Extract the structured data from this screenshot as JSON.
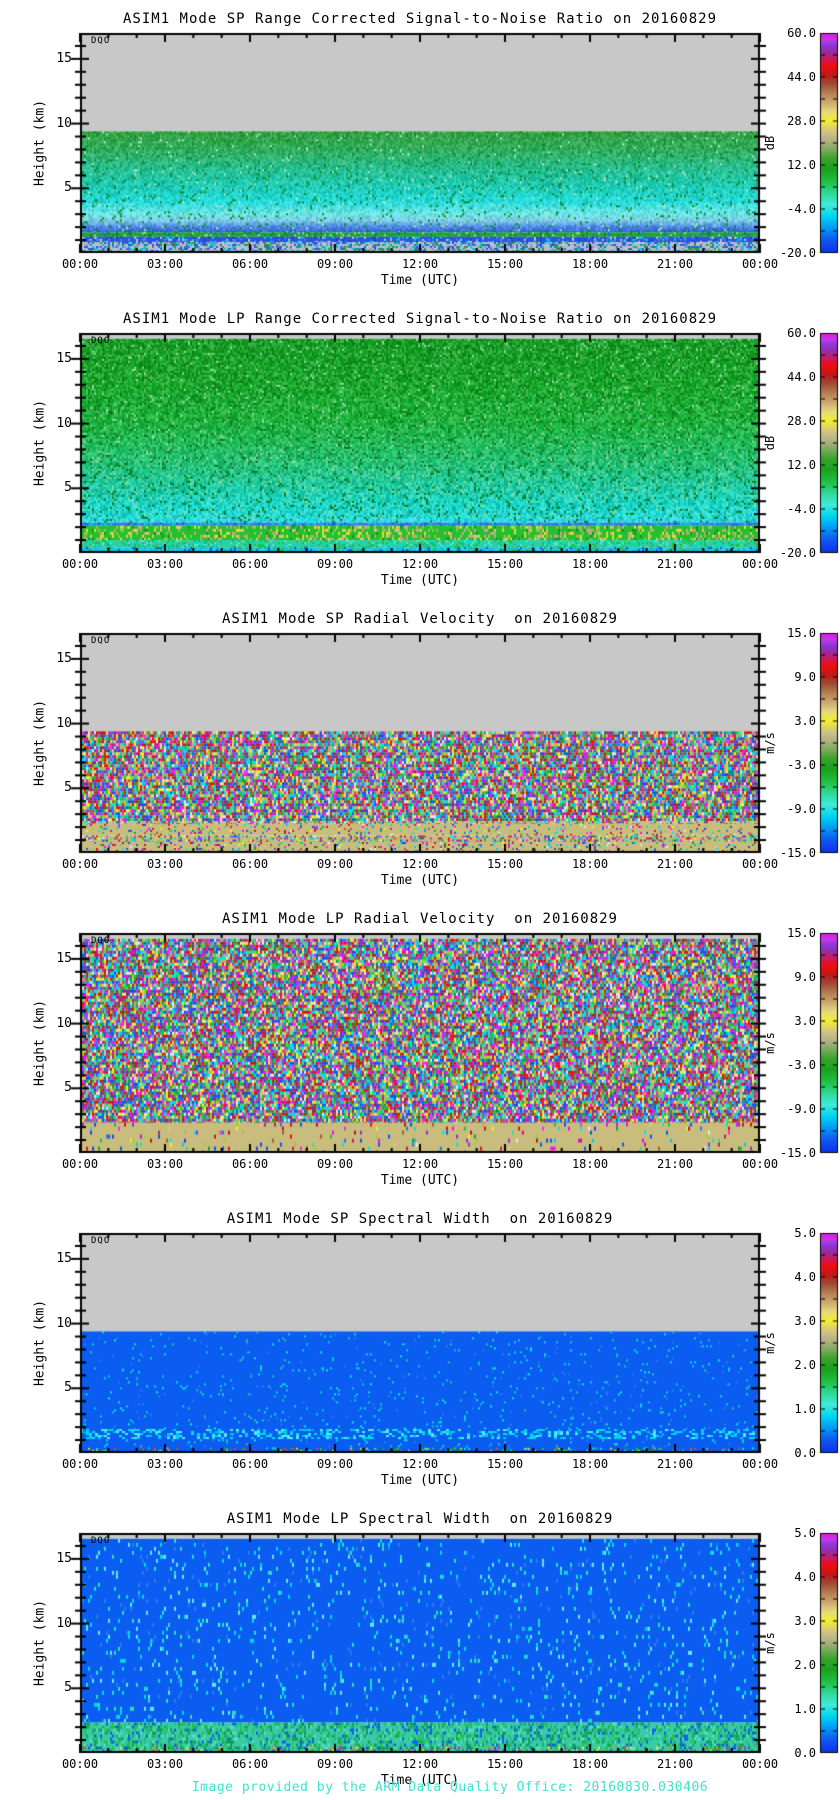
{
  "page": {
    "background": "#ffffff"
  },
  "footer": {
    "text": "Image provided by the ARM Data Quality Office: 20160830.030406",
    "color": "#40e0d0"
  },
  "palettes": {
    "rainbow": [
      "#2244ee",
      "#2a7af2",
      "#00ccee",
      "#35d8a0",
      "#22c044",
      "#1e9e2e",
      "#a0d030",
      "#f0ee30",
      "#d8cc70",
      "#cbaa60",
      "#a86038",
      "#b02020",
      "#e81010",
      "#c02060",
      "#8838cc",
      "#e838dd",
      "#f010f0",
      "#e8e8e8",
      "#0b5cf0",
      "#00e8e8"
    ]
  },
  "colorbar_gradient": [
    [
      0.0,
      "#0a30f0"
    ],
    [
      0.06,
      "#1058f2"
    ],
    [
      0.12,
      "#00a2f5"
    ],
    [
      0.17,
      "#00d8ee"
    ],
    [
      0.22,
      "#40ecd8"
    ],
    [
      0.27,
      "#2eda9a"
    ],
    [
      0.32,
      "#22c345"
    ],
    [
      0.38,
      "#17a21e"
    ],
    [
      0.43,
      "#3ba32c"
    ],
    [
      0.47,
      "#7cab5e"
    ],
    [
      0.51,
      "#b3b184"
    ],
    [
      0.55,
      "#cfc386"
    ],
    [
      0.6,
      "#f2ee2e"
    ],
    [
      0.64,
      "#e7dc7a"
    ],
    [
      0.68,
      "#cfae72"
    ],
    [
      0.73,
      "#b27c50"
    ],
    [
      0.77,
      "#9e4a34"
    ],
    [
      0.81,
      "#c01818"
    ],
    [
      0.85,
      "#ee0e0e"
    ],
    [
      0.88,
      "#d01850"
    ],
    [
      0.91,
      "#a02898"
    ],
    [
      0.94,
      "#8a35d5"
    ],
    [
      0.97,
      "#c13ae8"
    ],
    [
      1.0,
      "#f00ef0"
    ]
  ],
  "chart_data": [
    {
      "type": "heatmap",
      "title": "ASIM1 Mode SP Range Corrected Signal-to-Noise Ratio on 20160829",
      "xlabel": "Time (UTC)",
      "ylabel": "Height (km)",
      "annotation": "DQO",
      "xticks": [
        "00:00",
        "03:00",
        "06:00",
        "09:00",
        "12:00",
        "15:00",
        "18:00",
        "21:00",
        "00:00"
      ],
      "xrange_hours": [
        0,
        24
      ],
      "yticks": [
        5,
        10,
        15
      ],
      "yrange": [
        0,
        17
      ],
      "colorbar": {
        "unit": "dB",
        "ticks": [
          "60.0",
          "44.0",
          "28.0",
          "12.0",
          "-4.0",
          "-20.0"
        ],
        "range": [
          -20,
          60
        ]
      },
      "field": {
        "layers": [
          {
            "kind": "solid",
            "y0": 9.4,
            "y1": 17,
            "color": "#c8c8c8"
          },
          {
            "kind": "grad",
            "y0": 1.6,
            "y1": 9.4,
            "noise": 0.2,
            "stops": [
              [
                9.4,
                "#2da33c"
              ],
              [
                8,
                "#2bb25a"
              ],
              [
                6.5,
                "#1fc494"
              ],
              [
                5,
                "#16d4c0"
              ],
              [
                4,
                "#1ce2e2"
              ],
              [
                3,
                "#6ceef0"
              ],
              [
                2.5,
                "#7cd2f2"
              ],
              [
                2.05,
                "#4b8cf0"
              ],
              [
                1.6,
                "#2b5ce4"
              ]
            ],
            "specks": [
              {
                "color": "#0f8c2c",
                "density": 0.05
              },
              {
                "color": "#a8e8c0",
                "density": 0.02
              }
            ]
          },
          {
            "kind": "speckle",
            "y0": 1.25,
            "y1": 1.6,
            "base": "#1fa42c",
            "palette": [
              "#2bb838",
              "#0d8020",
              "#2b64e8",
              "#9adf70"
            ],
            "density": 0.3
          },
          {
            "kind": "speckle",
            "y0": 0.85,
            "y1": 1.25,
            "base": "#2b55e0",
            "palette": [
              "#1b3fc0",
              "#4b8cf0",
              "#00d0e0",
              "#c8c8c8"
            ],
            "density": 0.3
          },
          {
            "kind": "speckle",
            "y0": 0,
            "y1": 0.85,
            "base": "#b4bcca",
            "palette": [
              "#2b55e0",
              "#4066e8",
              "#8898c0",
              "#c8c8c8",
              "#1fa42c",
              "#00c8e0"
            ],
            "density": 0.6
          }
        ]
      }
    },
    {
      "type": "heatmap",
      "title": "ASIM1 Mode LP Range Corrected Signal-to-Noise Ratio on 20160829",
      "xlabel": "Time (UTC)",
      "ylabel": "Height (km)",
      "annotation": "DQO",
      "xticks": [
        "00:00",
        "03:00",
        "06:00",
        "09:00",
        "12:00",
        "15:00",
        "18:00",
        "21:00",
        "00:00"
      ],
      "xrange_hours": [
        0,
        24
      ],
      "yticks": [
        5,
        10,
        15
      ],
      "yrange": [
        0,
        17
      ],
      "colorbar": {
        "unit": "dB",
        "ticks": [
          "60.0",
          "44.0",
          "28.0",
          "12.0",
          "-4.0",
          "-20.0"
        ],
        "range": [
          -20,
          60
        ]
      },
      "field": {
        "layers": [
          {
            "kind": "solid",
            "y0": 16.55,
            "y1": 17,
            "color": "#c8c8c8"
          },
          {
            "kind": "grad",
            "y0": 2.35,
            "y1": 16.55,
            "noise": 0.26,
            "stops": [
              [
                16.55,
                "#0fa01e"
              ],
              [
                13,
                "#12ac26"
              ],
              [
                10,
                "#16b83a"
              ],
              [
                7,
                "#1cc876"
              ],
              [
                5,
                "#17d4ae"
              ],
              [
                3.6,
                "#10dfd2"
              ],
              [
                2.35,
                "#20e2e6"
              ]
            ],
            "specks": [
              {
                "color": "#0a7a14",
                "density": 0.07
              },
              {
                "color": "#8adf9a",
                "density": 0.03
              }
            ]
          },
          {
            "kind": "speckle",
            "y0": 2.1,
            "y1": 2.35,
            "base": "#2e7ae8",
            "palette": [
              "#00d8e8",
              "#2255dd",
              "#18c8b0"
            ],
            "density": 0.4
          },
          {
            "kind": "speckle",
            "y0": 1.0,
            "y1": 2.1,
            "base": "#22c12e",
            "palette": [
              "#0d9a1c",
              "#7ed045",
              "#d8cc70",
              "#e8e028",
              "#caa36a",
              "#d8a0a0"
            ],
            "density": 0.38,
            "cw": 2,
            "ch": 3
          },
          {
            "kind": "speckle",
            "y0": 0.45,
            "y1": 1.0,
            "base": "#2cd0a0",
            "palette": [
              "#18b87a",
              "#00e0e0",
              "#22c12e",
              "#57e8c8"
            ],
            "density": 0.4
          },
          {
            "kind": "speckle",
            "y0": 0,
            "y1": 0.45,
            "base": "#18c0e0",
            "palette": [
              "#2255dd",
              "#3bd0f0",
              "#22c12e",
              "#00e8e8"
            ],
            "density": 0.45
          }
        ]
      }
    },
    {
      "type": "heatmap",
      "title": "ASIM1 Mode SP Radial Velocity  on 20160829",
      "xlabel": "Time (UTC)",
      "ylabel": "Height (km)",
      "annotation": "DQO",
      "xticks": [
        "00:00",
        "03:00",
        "06:00",
        "09:00",
        "12:00",
        "15:00",
        "18:00",
        "21:00",
        "00:00"
      ],
      "xrange_hours": [
        0,
        24
      ],
      "yticks": [
        5,
        10,
        15
      ],
      "yrange": [
        0,
        17
      ],
      "colorbar": {
        "unit": "m/s",
        "ticks": [
          "15.0",
          "9.0",
          "3.0",
          "-3.0",
          "-9.0",
          "-15.0"
        ],
        "range": [
          -15,
          15
        ]
      },
      "field": {
        "layers": [
          {
            "kind": "solid",
            "y0": 9.4,
            "y1": 17,
            "color": "#c8c8c8"
          },
          {
            "kind": "speckle",
            "y0": 2.45,
            "y1": 9.4,
            "base": "#c9bd7e",
            "palette": "rainbow",
            "density": 1,
            "cw": 2,
            "ch": 3
          },
          {
            "kind": "speckle",
            "y0": 2.25,
            "y1": 2.45,
            "base": "#c9bd7e",
            "palette": "rainbow",
            "density": 0.5
          },
          {
            "kind": "speckle",
            "y0": 1.35,
            "y1": 2.25,
            "base": "#c9bd7e",
            "palette": "rainbow",
            "density": 0.15
          },
          {
            "kind": "speckle",
            "y0": 0.85,
            "y1": 1.35,
            "base": "#c9bd7e",
            "palette": "rainbow",
            "density": 0.45
          },
          {
            "kind": "speckle",
            "y0": 0,
            "y1": 0.85,
            "base": "#c9bd7e",
            "palette": "rainbow",
            "density": 0.2
          }
        ]
      }
    },
    {
      "type": "heatmap",
      "title": "ASIM1 Mode LP Radial Velocity  on 20160829",
      "xlabel": "Time (UTC)",
      "ylabel": "Height (km)",
      "annotation": "DQO",
      "xticks": [
        "00:00",
        "03:00",
        "06:00",
        "09:00",
        "12:00",
        "15:00",
        "18:00",
        "21:00",
        "00:00"
      ],
      "xrange_hours": [
        0,
        24
      ],
      "yticks": [
        5,
        10,
        15
      ],
      "yrange": [
        0,
        17
      ],
      "colorbar": {
        "unit": "m/s",
        "ticks": [
          "15.0",
          "9.0",
          "3.0",
          "-3.0",
          "-9.0",
          "-15.0"
        ],
        "range": [
          -15,
          15
        ]
      },
      "field": {
        "layers": [
          {
            "kind": "solid",
            "y0": 16.55,
            "y1": 17,
            "color": "#c8c8c8"
          },
          {
            "kind": "speckle",
            "y0": 2.35,
            "y1": 16.55,
            "base": "#c9bd7e",
            "palette": "rainbow",
            "density": 1,
            "cw": 2,
            "ch": 3
          },
          {
            "kind": "speckle",
            "y0": 0,
            "y1": 2.35,
            "base": "#c9bd7e",
            "palette": "rainbow",
            "density": 0.08,
            "cw": 2,
            "ch": 4
          }
        ]
      }
    },
    {
      "type": "heatmap",
      "title": "ASIM1 Mode SP Spectral Width  on 20160829",
      "xlabel": "Time (UTC)",
      "ylabel": "Height (km)",
      "annotation": "DQO",
      "xticks": [
        "00:00",
        "03:00",
        "06:00",
        "09:00",
        "12:00",
        "15:00",
        "18:00",
        "21:00",
        "00:00"
      ],
      "xrange_hours": [
        0,
        24
      ],
      "yticks": [
        5,
        10,
        15
      ],
      "yrange": [
        0,
        17
      ],
      "colorbar": {
        "unit": "m/s",
        "ticks": [
          "5.0",
          "4.0",
          "3.0",
          "2.0",
          "1.0",
          "0.0"
        ],
        "range": [
          0,
          5
        ]
      },
      "field": {
        "layers": [
          {
            "kind": "solid",
            "y0": 9.4,
            "y1": 17,
            "color": "#c8c8c8"
          },
          {
            "kind": "speckle",
            "y0": 0,
            "y1": 9.4,
            "base": "#0b5cf0",
            "palette": [
              "#00d0f8",
              "#00e8e8",
              "#2a7af2",
              "#11c8b0"
            ],
            "density": 0.04,
            "cw": 2,
            "ch": 2
          },
          {
            "kind": "speckle",
            "y0": 1.15,
            "y1": 1.85,
            "base": null,
            "palette": [
              "#00e0e8",
              "#55eef0",
              "#0b5cf0",
              "#00c8f0"
            ],
            "density": 0.5,
            "cw": 3,
            "ch": 2
          },
          {
            "kind": "speckle",
            "y0": 0,
            "y1": 0.4,
            "base": null,
            "palette": [
              "#00e0e8",
              "#22c044",
              "#b8d830",
              "#e04040",
              "#18a020"
            ],
            "density": 0.2,
            "cw": 2,
            "ch": 2
          }
        ]
      }
    },
    {
      "type": "heatmap",
      "title": "ASIM1 Mode LP Spectral Width  on 20160829",
      "xlabel": "Time (UTC)",
      "ylabel": "Height (km)",
      "annotation": "DQO",
      "xticks": [
        "00:00",
        "03:00",
        "06:00",
        "09:00",
        "12:00",
        "15:00",
        "18:00",
        "21:00",
        "00:00"
      ],
      "xrange_hours": [
        0,
        24
      ],
      "yticks": [
        5,
        10,
        15
      ],
      "yrange": [
        0,
        17
      ],
      "colorbar": {
        "unit": "m/s",
        "ticks": [
          "5.0",
          "4.0",
          "3.0",
          "2.0",
          "1.0",
          "0.0"
        ],
        "range": [
          0,
          5
        ]
      },
      "field": {
        "layers": [
          {
            "kind": "solid",
            "y0": 16.55,
            "y1": 17,
            "color": "#c8c8c8"
          },
          {
            "kind": "speckle",
            "y0": 2.35,
            "y1": 16.55,
            "base": "#0b5cf0",
            "palette": [
              "#00d8e8",
              "#27e0c0",
              "#2a7af2",
              "#66e8f0"
            ],
            "density": 0.08,
            "cw": 2,
            "ch": 4
          },
          {
            "kind": "speckle",
            "y0": 0,
            "y1": 2.35,
            "base": "#3acba5",
            "palette": [
              "#18a86a",
              "#20c089",
              "#55dfc0",
              "#0b5cf0",
              "#22c044",
              "#129a50"
            ],
            "density": 0.5,
            "cw": 2,
            "ch": 3
          },
          {
            "kind": "speckle",
            "y0": 0,
            "y1": 0.5,
            "base": null,
            "palette": [
              "#18a020",
              "#e8e830",
              "#e04040",
              "#cc22cc",
              "#0b5cf0",
              "#f09020"
            ],
            "density": 0.22,
            "cw": 2,
            "ch": 3
          }
        ]
      }
    }
  ]
}
